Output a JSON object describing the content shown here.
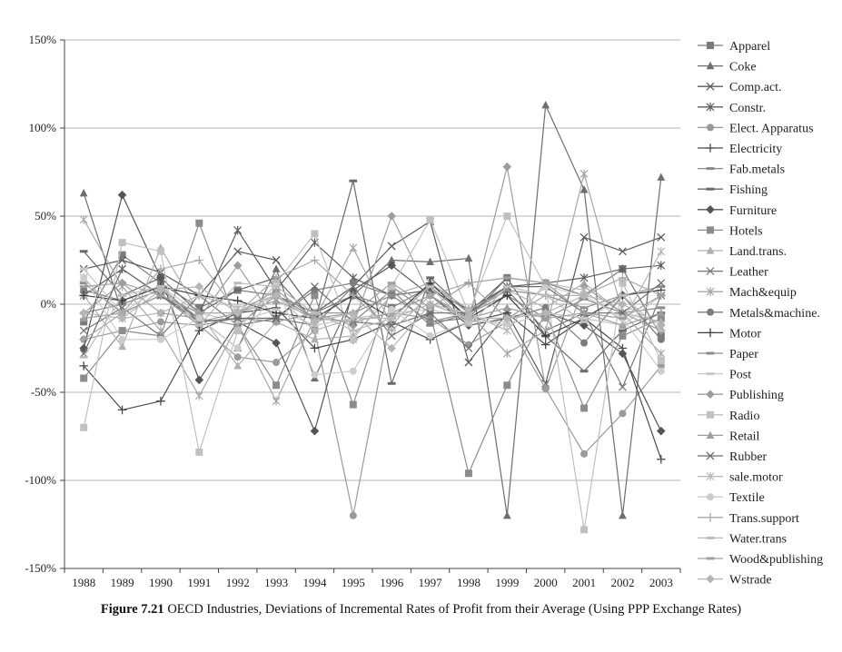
{
  "chart_data": {
    "type": "line",
    "x": [
      "1988",
      "1989",
      "1990",
      "1991",
      "1992",
      "1993",
      "1994",
      "1995",
      "1996",
      "1997",
      "1998",
      "1999",
      "2000",
      "2001",
      "2002",
      "2003"
    ],
    "y_ticks": [
      "150%",
      "100%",
      "50%",
      "0%",
      "-50%",
      "-100%",
      "-150%"
    ],
    "y_tick_values": [
      150,
      100,
      50,
      0,
      -50,
      -100,
      -150
    ],
    "ylim": [
      -150,
      150
    ],
    "grid": "horizontal",
    "legend_position": "right",
    "series": [
      {
        "name": "Apparel",
        "marker": "square",
        "color": "#7a7a7a",
        "values": [
          -10,
          28,
          12,
          -2,
          8,
          5,
          -5,
          5,
          -2,
          10,
          -8,
          15,
          12,
          5,
          20,
          -18
        ]
      },
      {
        "name": "Coke",
        "marker": "triangle",
        "color": "#6e6e6e",
        "values": [
          63,
          -5,
          5,
          -8,
          -25,
          20,
          -42,
          5,
          25,
          24,
          26,
          -120,
          113,
          65,
          -120,
          72
        ]
      },
      {
        "name": "Comp.act.",
        "marker": "x",
        "color": "#5a5a5a",
        "values": [
          20,
          25,
          18,
          5,
          30,
          25,
          -5,
          10,
          33,
          47,
          -33,
          -5,
          -45,
          38,
          30,
          38
        ]
      },
      {
        "name": "Constr.",
        "marker": "star",
        "color": "#5e5e5e",
        "values": [
          5,
          20,
          5,
          -5,
          42,
          8,
          35,
          15,
          5,
          8,
          -3,
          10,
          12,
          15,
          20,
          22
        ]
      },
      {
        "name": "Elect. Apparatus",
        "marker": "circle",
        "color": "#9a9a9a",
        "values": [
          -20,
          -15,
          -10,
          -12,
          -30,
          -33,
          -15,
          -120,
          -5,
          -8,
          -23,
          -10,
          -48,
          -85,
          -62,
          -35
        ]
      },
      {
        "name": "Electricity",
        "marker": "plus",
        "color": "#4a4a4a",
        "values": [
          -35,
          -60,
          -55,
          -15,
          -5,
          -2,
          -25,
          -20,
          -10,
          -20,
          -10,
          -5,
          -23,
          -8,
          -25,
          -88
        ]
      },
      {
        "name": "Fab.metals",
        "marker": "dash",
        "color": "#8a8a8a",
        "values": [
          -5,
          0,
          8,
          -8,
          -12,
          5,
          -8,
          -10,
          8,
          -12,
          -5,
          5,
          -8,
          3,
          -5,
          -2
        ]
      },
      {
        "name": "Fishing",
        "marker": "dash",
        "color": "#6a6a6a",
        "values": [
          30,
          5,
          15,
          -5,
          8,
          15,
          -10,
          70,
          -45,
          15,
          -5,
          15,
          -18,
          -38,
          -15,
          -5
        ]
      },
      {
        "name": "Furniture",
        "marker": "diamond",
        "color": "#555555",
        "values": [
          -25,
          62,
          15,
          -43,
          -10,
          -22,
          -72,
          8,
          22,
          5,
          -12,
          -8,
          -5,
          -12,
          -28,
          -72
        ]
      },
      {
        "name": "Hotels",
        "marker": "square",
        "color": "#8c8c8c",
        "values": [
          -42,
          -15,
          -18,
          46,
          -12,
          -46,
          5,
          -57,
          10,
          -5,
          -96,
          -46,
          -5,
          -59,
          -18,
          -8
        ]
      },
      {
        "name": "Land.trans.",
        "marker": "triangle",
        "color": "#b0b0b0",
        "values": [
          5,
          -24,
          32,
          -5,
          -35,
          -10,
          -20,
          -18,
          5,
          12,
          -3,
          8,
          -2,
          12,
          -5,
          -10
        ]
      },
      {
        "name": "Leather",
        "marker": "x",
        "color": "#777777",
        "values": [
          -15,
          -2,
          -18,
          5,
          -12,
          -8,
          -12,
          10,
          -18,
          -5,
          -25,
          8,
          -15,
          -5,
          -47,
          5
        ]
      },
      {
        "name": "Mach&equip",
        "marker": "star",
        "color": "#a8a8a8",
        "values": [
          48,
          10,
          -15,
          -52,
          -12,
          -55,
          -8,
          32,
          -12,
          12,
          -5,
          -28,
          -15,
          74,
          -5,
          -28
        ]
      },
      {
        "name": "Metals&machine.",
        "marker": "circle",
        "color": "#7c7c7c",
        "values": [
          8,
          2,
          10,
          -10,
          -8,
          -8,
          8,
          12,
          5,
          -10,
          -8,
          -8,
          -2,
          -22,
          5,
          -20
        ]
      },
      {
        "name": "Motor",
        "marker": "plus",
        "color": "#3e3e3e",
        "values": [
          5,
          2,
          10,
          5,
          2,
          -5,
          -8,
          5,
          -8,
          12,
          -8,
          5,
          -18,
          -8,
          5,
          8
        ]
      },
      {
        "name": "Paper",
        "marker": "dash",
        "color": "#8e8e8e",
        "values": [
          12,
          -5,
          5,
          -12,
          -8,
          -10,
          -5,
          -5,
          5,
          -10,
          -5,
          8,
          5,
          -2,
          5,
          10
        ]
      },
      {
        "name": "Post",
        "marker": "dash",
        "color": "#c8c8c8",
        "values": [
          20,
          -5,
          10,
          -5,
          -10,
          -3,
          -12,
          -8,
          -5,
          -3,
          -8,
          -12,
          -5,
          -8,
          -12,
          5
        ]
      },
      {
        "name": "Publishing",
        "marker": "diamond",
        "color": "#9c9c9c",
        "values": [
          -5,
          12,
          -5,
          -8,
          22,
          -10,
          -5,
          -12,
          50,
          5,
          -10,
          78,
          -48,
          10,
          -5,
          -15
        ]
      },
      {
        "name": "Radio",
        "marker": "square",
        "color": "#c0c0c0",
        "values": [
          -70,
          35,
          30,
          -84,
          -15,
          12,
          40,
          -20,
          10,
          48,
          -5,
          50,
          10,
          -128,
          12,
          -32
        ]
      },
      {
        "name": "Retail",
        "marker": "triangle",
        "color": "#9e9e9e",
        "values": [
          -8,
          -5,
          5,
          -10,
          -5,
          2,
          -8,
          -10,
          -5,
          5,
          -8,
          -2,
          -8,
          -5,
          -12,
          -5
        ]
      },
      {
        "name": "Rubber",
        "marker": "x",
        "color": "#6c6c6c",
        "values": [
          -28,
          20,
          5,
          -10,
          -8,
          -8,
          10,
          -10,
          -12,
          -5,
          -5,
          10,
          10,
          -5,
          -5,
          12
        ]
      },
      {
        "name": "sale.motor",
        "marker": "star",
        "color": "#b8b8b8",
        "values": [
          15,
          -8,
          -5,
          5,
          -2,
          5,
          -15,
          -8,
          -8,
          0,
          -5,
          -15,
          12,
          8,
          -10,
          30
        ]
      },
      {
        "name": "Textile",
        "marker": "circle",
        "color": "#cccccc",
        "values": [
          15,
          -20,
          -20,
          -8,
          -25,
          10,
          -40,
          -38,
          -3,
          -18,
          -10,
          -10,
          10,
          5,
          -8,
          -38
        ]
      },
      {
        "name": "Trans.support",
        "marker": "plus",
        "color": "#aaaaaa",
        "values": [
          -20,
          -5,
          20,
          25,
          -5,
          15,
          25,
          5,
          -15,
          5,
          12,
          -8,
          5,
          5,
          15,
          5
        ]
      },
      {
        "name": "Water.trans",
        "marker": "dash",
        "color": "#bcbcbc",
        "values": [
          -30,
          5,
          10,
          -12,
          12,
          10,
          -5,
          -15,
          -8,
          10,
          -12,
          10,
          5,
          -10,
          5,
          -15
        ]
      },
      {
        "name": "Wood&publishing",
        "marker": "dash",
        "color": "#a0a0a0",
        "values": [
          10,
          12,
          5,
          -5,
          -5,
          8,
          -8,
          -5,
          12,
          -2,
          12,
          15,
          12,
          -5,
          -8,
          5
        ]
      },
      {
        "name": "Wstrade",
        "marker": "diamond",
        "color": "#b5b5b5",
        "values": [
          -5,
          -8,
          8,
          10,
          -5,
          5,
          -10,
          -5,
          -25,
          0,
          -8,
          -8,
          -5,
          5,
          0,
          -12
        ]
      }
    ]
  },
  "caption": {
    "label": "Figure 7.21",
    "text": "OECD Industries, Deviations of Incremental Rates of Profit from their Average (Using PPP Exchange Rates)"
  }
}
